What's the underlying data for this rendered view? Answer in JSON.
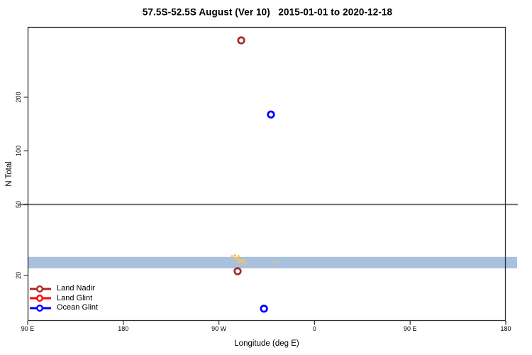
{
  "chart_data": {
    "type": "scatter",
    "title": "57.5S-52.5S August (Ver 10)   2015-01-01 to 2020-12-18",
    "xlabel": "Longitude (deg E)",
    "ylabel": "N Total",
    "x_axis": {
      "min": 90,
      "max": 540,
      "ticks": [
        {
          "value": 90,
          "label": "90 E"
        },
        {
          "value": 180,
          "label": "180"
        },
        {
          "value": 270,
          "label": "90 W"
        },
        {
          "value": 360,
          "label": "0"
        },
        {
          "value": 450,
          "label": "90 E"
        },
        {
          "value": 540,
          "label": "180"
        }
      ]
    },
    "y_axis": {
      "scale": "log",
      "min": 11.1,
      "max": 496,
      "ticks": [
        {
          "value": 20,
          "label": "20"
        },
        {
          "value": 50,
          "label": "50"
        },
        {
          "value": 100,
          "label": "100"
        },
        {
          "value": 200,
          "label": "200"
        }
      ]
    },
    "reference_line": {
      "value": 50,
      "color": "#7a7a7a"
    },
    "highlight_band": {
      "from": 21.9,
      "to": 25.4,
      "color": "#A9C1DE"
    },
    "series": [
      {
        "name": "Land Nadir",
        "color": "#A52A2A",
        "marker": "open-circle",
        "points": [
          {
            "lon": 291.0,
            "n": 417
          },
          {
            "lon": 287.6,
            "n": 21.1
          }
        ]
      },
      {
        "name": "Land Glint",
        "color": "#FF0000",
        "marker": "open-circle",
        "points": []
      },
      {
        "name": "Ocean Glint",
        "color": "#0000FF",
        "marker": "open-circle",
        "points": [
          {
            "lon": 319.0,
            "n": 160
          },
          {
            "lon": 312.4,
            "n": 13.0
          }
        ]
      },
      {
        "name": "Unlabeled yellow cluster",
        "color": "#F2C45E",
        "marker": "speck",
        "points": [
          {
            "lon": 282.3,
            "n": 25.6
          },
          {
            "lon": 285.0,
            "n": 25.9
          },
          {
            "lon": 284.3,
            "n": 24.8
          },
          {
            "lon": 287.0,
            "n": 25.0
          },
          {
            "lon": 288.3,
            "n": 25.6
          },
          {
            "lon": 289.6,
            "n": 24.5
          },
          {
            "lon": 291.0,
            "n": 24.0
          },
          {
            "lon": 293.0,
            "n": 24.3
          },
          {
            "lon": 288.3,
            "n": 23.8
          },
          {
            "lon": 294.3,
            "n": 23.5
          },
          {
            "lon": 295.6,
            "n": 23.3
          },
          {
            "lon": 322.4,
            "n": 23.8
          }
        ]
      }
    ],
    "legend": {
      "position": "bottom-left",
      "entries": [
        {
          "label": "Land Nadir",
          "color": "#A52A2A"
        },
        {
          "label": "Land Glint",
          "color": "#FF0000"
        },
        {
          "label": "Ocean Glint",
          "color": "#0000FF"
        }
      ]
    }
  }
}
